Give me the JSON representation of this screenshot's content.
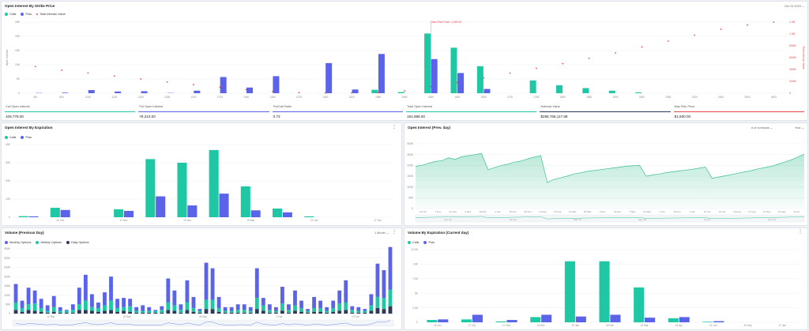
{
  "colors": {
    "calls": "#1ec8a5",
    "puts": "#5b63e8",
    "maxpain": "#e5484d",
    "monthly": "#5b63e8",
    "weekly": "#1ec8a5",
    "daily": "#2f3a5a",
    "area": "#3bbf8f"
  },
  "strike_panel": {
    "title": "Open Interest By Strike Price",
    "date": "Oct 13 2023",
    "legend": {
      "calls": "Calls",
      "puts": "Puts",
      "total": "Total Intrinsic Value"
    },
    "ylabel": "Open Interest",
    "ylabel_right": "Total Intrinsic Value",
    "max_pain_label": "Max Pain Price: 1,600.00",
    "stats": [
      {
        "label": "Call Open Interest",
        "value": "106,778.00",
        "color": "#1ec8a5"
      },
      {
        "label": "Put Open Interest",
        "value": "78,210.00",
        "color": "#5b63e8"
      },
      {
        "label": "Put/Call Ratio",
        "value": "0.73",
        "color": "#5b63e8"
      },
      {
        "label": "Total Open Interest",
        "value": "184,988.00",
        "color": "#1ec8a5"
      },
      {
        "label": "Notional Value",
        "value": "$288,768,117.88",
        "color": "#2f3a5a"
      },
      {
        "label": "Max Pain Price",
        "value": "$1,600.00",
        "color": "#e5484d"
      }
    ]
  },
  "chart_data": [
    {
      "type": "bar",
      "title": "Open Interest By Strike Price",
      "ylabel": "Open Interest",
      "ylabel_right": "Total Intrinsic Value",
      "yticks": [
        "0",
        "5K",
        "10K",
        "15K",
        "20K",
        "25K"
      ],
      "ylim": [
        0,
        25000
      ],
      "yticks_right": [
        "0",
        "200M",
        "400M",
        "600M",
        "800M",
        "1.0B",
        "1.2B"
      ],
      "ylim_right": [
        0,
        1200000000
      ],
      "categories": [
        "300",
        "800",
        "1025",
        "1100",
        "1200",
        "1250",
        "1300",
        "1375",
        "1400",
        "1450",
        "1475",
        "1500",
        "1520",
        "1550",
        "1580",
        "1600",
        "1620",
        "1650",
        "1700",
        "1750",
        "1800",
        "1850",
        "1900",
        "2000",
        "2050",
        "2200",
        "2400",
        "2500",
        "2600"
      ],
      "category_ticks": [
        "300",
        "800",
        "1025",
        "1100",
        "1200",
        "1250",
        "1300",
        "1375",
        "1400",
        "1450",
        "1475",
        "1500",
        "1520",
        "1550",
        "1580",
        "1600",
        "1620",
        "1650",
        "1700",
        "1750",
        "1800",
        "1850",
        "1900",
        "2000",
        "2050",
        "2200",
        "2400",
        "2500",
        "2600"
      ],
      "series": [
        {
          "name": "Calls",
          "values": [
            0,
            0,
            0,
            0,
            0,
            0,
            0,
            0,
            0,
            0,
            0,
            0,
            0,
            1200,
            400,
            21000,
            16000,
            9500,
            0,
            4500,
            2800,
            1800,
            900,
            300,
            0,
            0,
            0,
            0,
            0
          ]
        },
        {
          "name": "Puts",
          "values": [
            100,
            200,
            1100,
            600,
            700,
            100,
            900,
            5700,
            2000,
            6000,
            0,
            10600,
            1300,
            13800,
            0,
            12000,
            7100,
            1500,
            0,
            0,
            0,
            0,
            0,
            0,
            0,
            0,
            0,
            0,
            0
          ]
        },
        {
          "name": "Total Intrinsic Value",
          "values": [
            450,
            390,
            340,
            290,
            240,
            190,
            145,
            100,
            60,
            30,
            10,
            5,
            5,
            10,
            40,
            110,
            180,
            260,
            340,
            420,
            500,
            590,
            680,
            780,
            880,
            980,
            1080,
            1150,
            1200
          ]
        }
      ],
      "max_pain": "1600"
    },
    {
      "type": "bar",
      "title": "Open Interest By Expiration",
      "yticks": [
        "0",
        "10K",
        "20K",
        "30K",
        "40K"
      ],
      "ylim": [
        0,
        40000
      ],
      "categories": [
        "20 Oct",
        "27 Oct",
        "17 Nov",
        "15 Dec",
        "19 Jan",
        "16 Feb",
        "15 Mar",
        "19 Apr",
        "21 Jun",
        "20 Sep",
        "20 Dec",
        "17 Jan"
      ],
      "category_ticks": [
        "",
        "20 Oct",
        "",
        "17 Nov",
        "",
        "19 Jan",
        "",
        "15 Mar",
        "",
        "21 Jun",
        "",
        "17 Jan"
      ],
      "series": [
        {
          "name": "Calls",
          "values": [
            600,
            5200,
            0,
            4400,
            32000,
            30000,
            37000,
            17000,
            4800,
            500,
            0,
            0
          ]
        },
        {
          "name": "Puts",
          "values": [
            500,
            4000,
            0,
            3500,
            11500,
            6500,
            13000,
            3800,
            2700,
            0,
            0,
            0
          ]
        }
      ]
    },
    {
      "type": "area",
      "title": "Open Interest (Prev. day)",
      "yticks": [
        "0",
        "50K",
        "100K",
        "150K",
        "200K",
        "250K",
        "300K"
      ],
      "ylim": [
        0,
        300000
      ],
      "x_ticks": [
        "24 Oct",
        "7 Nov",
        "21 Nov",
        "5 Dec",
        "19 Dec",
        "2 Jan",
        "16 Jan",
        "30 Jan",
        "13 Feb",
        "27 Feb",
        "12 Mar",
        "26 Mar",
        "9 Apr",
        "23 Apr",
        "7 May",
        "21 May",
        "4 Jun",
        "18 Jun",
        "2 Jul",
        "16 Jul",
        "30 Jul",
        "13 Aug",
        "27 Aug",
        "10 Sep",
        "24 Sep",
        "8 Oct"
      ],
      "nav_ticks": [
        "Nov '22",
        "Jan '23",
        "Mar '23",
        "May '23",
        "Jul '23",
        "Sep '23"
      ],
      "values": [
        196000,
        200000,
        210000,
        218000,
        222000,
        235000,
        228000,
        240000,
        245000,
        250000,
        255000,
        180000,
        190000,
        200000,
        205000,
        215000,
        220000,
        230000,
        238000,
        245000,
        120000,
        135000,
        142000,
        150000,
        160000,
        165000,
        172000,
        176000,
        180000,
        184000,
        188000,
        192000,
        196000,
        198000,
        200000,
        150000,
        156000,
        160000,
        166000,
        170000,
        174000,
        178000,
        182000,
        187000,
        192000,
        140000,
        146000,
        152000,
        158000,
        164000,
        170000,
        176000,
        184000,
        190000,
        196000,
        205000,
        215000,
        225000,
        238000,
        252000
      ]
    },
    {
      "type": "bar",
      "title": "Volume (Previous Day)",
      "stacked": true,
      "yticks": [
        "0",
        "50K",
        "100K",
        "150K",
        "200K",
        "250K",
        "300K",
        "350K"
      ],
      "ylim": [
        0,
        350000
      ],
      "categories": [
        "1",
        "2",
        "3",
        "4",
        "5",
        "6",
        "7",
        "8",
        "9",
        "10",
        "11",
        "12",
        "13",
        "14",
        "15",
        "16",
        "17",
        "18",
        "19",
        "20",
        "21",
        "22",
        "23",
        "24",
        "25",
        "26",
        "27",
        "28",
        "29",
        "30",
        "31",
        "32",
        "33",
        "34",
        "35",
        "36",
        "37",
        "38",
        "39",
        "40",
        "41",
        "42",
        "43",
        "44",
        "45",
        "46",
        "47",
        "48",
        "49",
        "50",
        "51",
        "52",
        "53",
        "54",
        "55",
        "56",
        "57",
        "58",
        "59",
        "60"
      ],
      "x_ticks": [
        "12 Sep",
        "19 Sep",
        "26 Sep",
        "3 Oct",
        "10 Oct"
      ],
      "series": [
        {
          "name": "Monthly Options",
          "values": [
            100000,
            40000,
            90000,
            70000,
            50000,
            30000,
            60000,
            20000,
            5000,
            30000,
            90000,
            140000,
            70000,
            30000,
            70000,
            130000,
            50000,
            50000,
            40000,
            20000,
            30000,
            20000,
            5000,
            20000,
            130000,
            80000,
            30000,
            120000,
            60000,
            10000,
            200000,
            170000,
            60000,
            20000,
            20000,
            30000,
            30000,
            20000,
            160000,
            40000,
            30000,
            20000,
            90000,
            30000,
            80000,
            40000,
            10000,
            60000,
            40000,
            20000,
            40000,
            70000,
            120000,
            20000,
            20000,
            10000,
            60000,
            180000,
            150000,
            230000
          ]
        },
        {
          "name": "Weekly Options",
          "values": [
            40000,
            20000,
            30000,
            40000,
            20000,
            10000,
            25000,
            10000,
            10000,
            15000,
            30000,
            50000,
            20000,
            20000,
            30000,
            50000,
            20000,
            20000,
            30000,
            10000,
            10000,
            10000,
            10000,
            15000,
            40000,
            30000,
            15000,
            40000,
            20000,
            10000,
            50000,
            50000,
            20000,
            10000,
            10000,
            15000,
            15000,
            10000,
            60000,
            30000,
            15000,
            10000,
            40000,
            15000,
            30000,
            20000,
            10000,
            20000,
            20000,
            10000,
            20000,
            40000,
            40000,
            15000,
            10000,
            10000,
            30000,
            60000,
            60000,
            90000
          ]
        },
        {
          "name": "Daily Options",
          "values": [
            20000,
            10000,
            20000,
            15000,
            10000,
            5000,
            10000,
            5000,
            5000,
            5000,
            20000,
            20000,
            15000,
            10000,
            15000,
            20000,
            10000,
            15000,
            10000,
            5000,
            5000,
            5000,
            5000,
            5000,
            20000,
            15000,
            5000,
            20000,
            10000,
            5000,
            25000,
            25000,
            10000,
            5000,
            5000,
            5000,
            5000,
            5000,
            25000,
            15000,
            5000,
            5000,
            15000,
            5000,
            15000,
            10000,
            5000,
            10000,
            10000,
            5000,
            10000,
            15000,
            20000,
            5000,
            5000,
            5000,
            15000,
            30000,
            25000,
            40000
          ]
        }
      ]
    },
    {
      "type": "bar",
      "title": "Volume By Expiration (Current day)",
      "yticks": [
        "0",
        "2.5K",
        "5K",
        "7.5K",
        "10K",
        "12.5K"
      ],
      "ylim": [
        0,
        12500
      ],
      "categories": [
        "20 Oct",
        "27 Oct",
        "17 Nov",
        "15 Dec",
        "19 Jan",
        "16 Feb",
        "15 Mar",
        "19 Apr",
        "21 Jun",
        "20 Sep",
        "17 Jan"
      ],
      "category_ticks": [
        "20 Oct",
        "27 Oct",
        "17 Nov",
        "15 Dec",
        "19 Jan",
        "16 Feb",
        "15 Mar",
        "19 Apr",
        "21 Jun",
        "20 Sep",
        "17 Jan"
      ],
      "series": [
        {
          "name": "Calls",
          "values": [
            400,
            500,
            150,
            900,
            10500,
            10500,
            6000,
            700,
            100,
            0,
            0
          ]
        },
        {
          "name": "Puts",
          "values": [
            500,
            1300,
            400,
            1300,
            1000,
            1300,
            800,
            900,
            200,
            0,
            0
          ]
        }
      ]
    }
  ],
  "expiration_panel": {
    "title": "Open Interest By Expiration",
    "legend": {
      "calls": "Calls",
      "puts": "Puts"
    }
  },
  "oi_prev_panel": {
    "title": "Open Interest (Prev. day)",
    "ctrl1": "# of contracts",
    "ctrl2": "Year"
  },
  "volume_prev_panel": {
    "title": "Volume (Previous Day)",
    "ctrl": "1 Month",
    "legend": {
      "monthly": "Monthly Options",
      "weekly": "Weekly Options",
      "daily": "Daily Options"
    }
  },
  "volume_exp_panel": {
    "title": "Volume By Expiration (Current day)",
    "legend": {
      "calls": "Calls",
      "puts": "Puts"
    }
  },
  "icons": {
    "kebab": "more-vertical-icon",
    "chevron": "chevron-down-icon"
  }
}
